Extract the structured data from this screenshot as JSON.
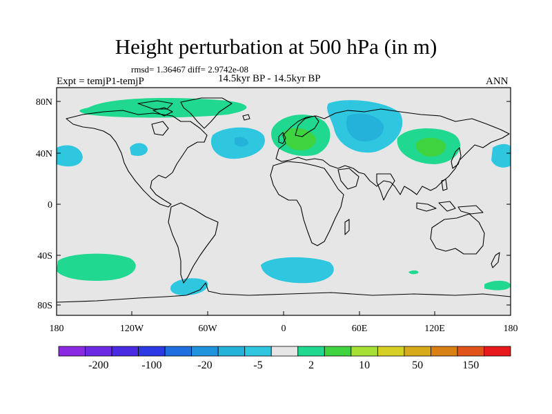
{
  "title": "Height perturbation at 500 hPa (in m)",
  "stats": "rmsd= 1.36467 diff= 2.9742e-08",
  "experiment": "Expt = temjP1-temjP",
  "period": "14.5kyr BP - 14.5kyr BP",
  "season": "ANN",
  "lat_ticks": [
    "80N",
    "40N",
    "0",
    "40S",
    "80S"
  ],
  "lon_ticks": [
    "180",
    "120W",
    "60W",
    "0",
    "60E",
    "120E",
    "180"
  ],
  "colorbar": {
    "colors": [
      "#8a2be2",
      "#6a2be2",
      "#4b2be2",
      "#2b3ae2",
      "#1f6fe0",
      "#1f93dc",
      "#25b2da",
      "#2fc7e0",
      "#e6e6e6",
      "#20d890",
      "#3fd43f",
      "#a6e034",
      "#d6d025",
      "#d6aa18",
      "#d98014",
      "#e0541a",
      "#e61a1a"
    ],
    "labels": [
      "-200",
      "-100",
      "-20",
      "-5",
      "2",
      "10",
      "50",
      "150"
    ]
  },
  "palette": {
    "ocean_bg": "#e6e6e6",
    "coast": "#000000",
    "pos_light": "#20d890",
    "pos_mid": "#3fd43f",
    "neg_light": "#2fc7e0",
    "neg_mid": "#25b2da"
  }
}
